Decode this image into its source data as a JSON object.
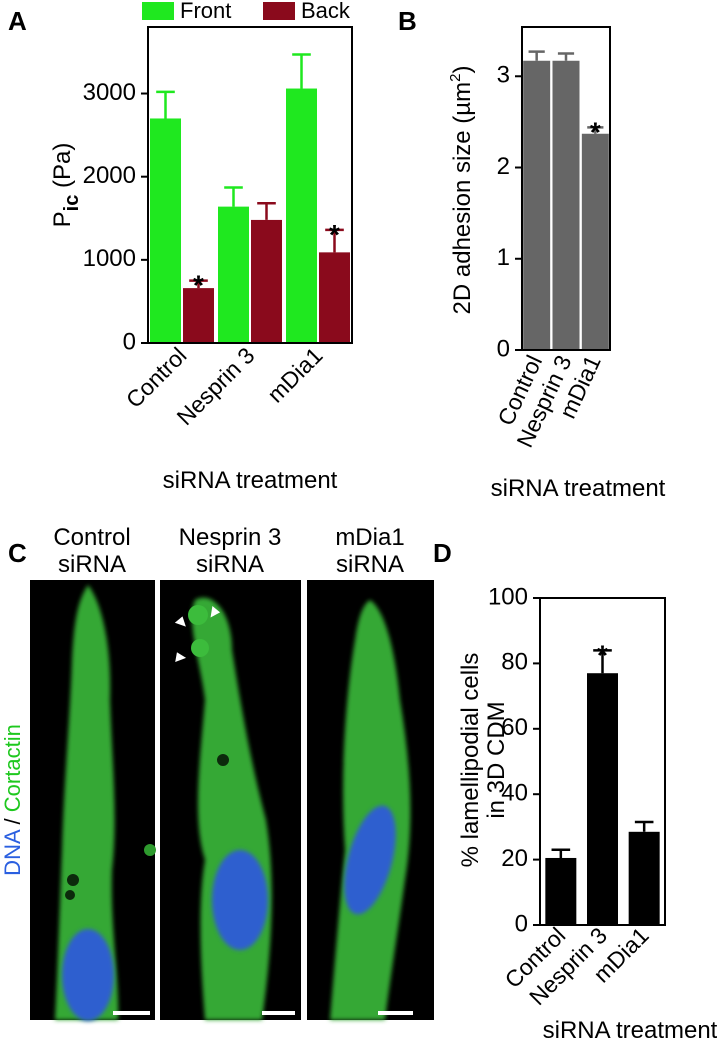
{
  "chart_data": [
    {
      "type": "bar",
      "label": "A",
      "categories": [
        "Control",
        "Nesprin 3",
        "mDia1"
      ],
      "series": [
        {
          "name": "Front",
          "color": "#1fe81f",
          "values": [
            2700,
            1640,
            3060
          ],
          "errors": [
            320,
            230,
            410
          ],
          "labels": [
            null,
            null,
            null
          ]
        },
        {
          "name": "Back",
          "color": "#8a0a1c",
          "values": [
            660,
            1480,
            1090
          ],
          "errors": [
            90,
            200,
            270
          ],
          "labels": [
            "*",
            null,
            "*"
          ]
        }
      ],
      "ylabel": {
        "main": "P",
        "sub": "ic",
        "rest": " (Pa)"
      },
      "xlabel": "siRNA treatment",
      "ylim": [
        0,
        3800
      ],
      "yticks": [
        0,
        1000,
        2000,
        3000
      ],
      "legend": "top"
    },
    {
      "type": "bar",
      "label": "B",
      "categories": [
        "Control",
        "Nesprin 3",
        "mDia1"
      ],
      "color": "#666666",
      "values": [
        3.17,
        3.17,
        2.37
      ],
      "errors": [
        0.1,
        0.08,
        0.07
      ],
      "labels": [
        null,
        null,
        "*"
      ],
      "ylabel": {
        "main": "2D adhesion size (µm",
        "sup": "2",
        "rest": ")"
      },
      "xlabel": "siRNA treatment",
      "ylim": [
        0,
        3.54
      ],
      "yticks": [
        0,
        1,
        2,
        3
      ]
    },
    {
      "type": "bar",
      "label": "D",
      "categories": [
        "Control",
        "Nesprin 3",
        "mDia1"
      ],
      "color": "#000000",
      "values": [
        20.5,
        77,
        28.5
      ],
      "errors": [
        2.5,
        7,
        3
      ],
      "labels": [
        null,
        "*",
        null
      ],
      "ylabel": {
        "line1": "% lamellipodial cells",
        "line2": "in 3D CDM"
      },
      "xlabel": "siRNA treatment",
      "ylim": [
        0,
        100
      ],
      "yticks": [
        0,
        20,
        40,
        60,
        80,
        100
      ]
    }
  ],
  "panel_c": {
    "label": "C",
    "images": [
      {
        "title": [
          "Control",
          "siRNA"
        ]
      },
      {
        "title": [
          "Nesprin 3",
          "siRNA"
        ]
      },
      {
        "title": [
          "mDia1",
          "siRNA"
        ]
      }
    ],
    "stain": {
      "dna": "DNA",
      "sep": " / ",
      "cortactin": "Cortactin"
    }
  }
}
